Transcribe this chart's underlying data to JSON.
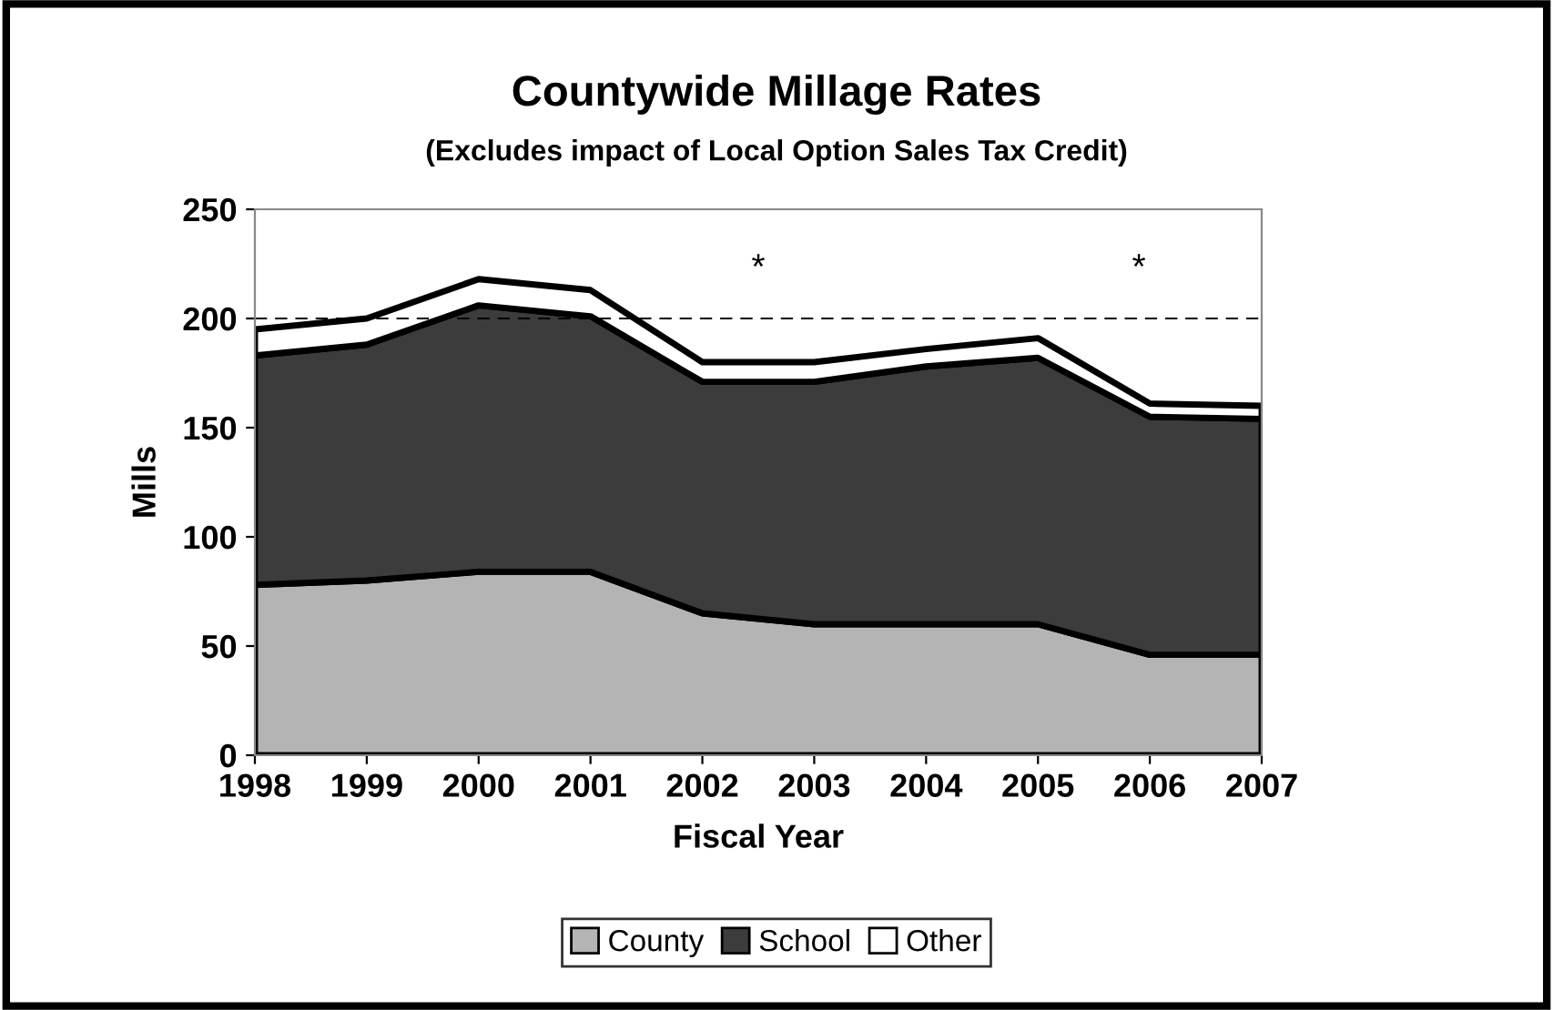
{
  "chart_data": {
    "type": "area",
    "stacked": true,
    "title": "Countywide Millage Rates",
    "subtitle": "(Excludes impact of Local Option Sales Tax Credit)",
    "xlabel": "Fiscal Year",
    "ylabel": "Mills",
    "x": [
      1998,
      1999,
      2000,
      2001,
      2002,
      2003,
      2004,
      2005,
      2006,
      2007
    ],
    "series": [
      {
        "name": "County",
        "color": "#b4b4b4",
        "values": [
          78,
          80,
          84,
          84,
          65,
          60,
          60,
          60,
          46,
          46
        ]
      },
      {
        "name": "School",
        "color": "#3c3c3c",
        "values": [
          105,
          108,
          122,
          117,
          106,
          111,
          118,
          122,
          109,
          108
        ]
      },
      {
        "name": "Other",
        "color": "#ffffff",
        "values": [
          12,
          12,
          12,
          12,
          9,
          9,
          8,
          9,
          6,
          6
        ]
      }
    ],
    "xlim": [
      1998,
      2007
    ],
    "xticks": [
      1998,
      1999,
      2000,
      2001,
      2002,
      2003,
      2004,
      2005,
      2006,
      2007
    ],
    "ylim": [
      0,
      250
    ],
    "yticks": [
      0,
      50,
      100,
      150,
      200,
      250
    ],
    "ref_lines": [
      {
        "axis": "y",
        "value": 200,
        "line_style": "dashed",
        "color": "#000000"
      }
    ],
    "annotations": [
      "*",
      "*"
    ],
    "grid": false,
    "legend": "bottom"
  }
}
